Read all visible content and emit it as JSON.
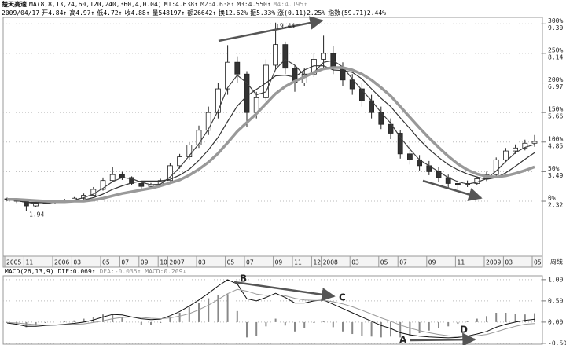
{
  "chart_data": [
    {
      "type": "candlestick",
      "title": "楚天高速",
      "indicator": "MA(8,8,13,24,60,120,240,360,4,0.04)",
      "info": [
        "2009/04/17",
        "开4.84↑",
        "高4.97↑",
        "低4.72↑",
        "收4.88↑",
        "量548197↑",
        "额26642↑",
        "换12.62%",
        "振5.33%",
        "涨(0.11)2.25%",
        "指数(59.71)2.44%"
      ],
      "period_label": "周线",
      "annotations": [
        "9.44",
        "1.94"
      ],
      "categories": [
        "2005",
        null,
        "11",
        null,
        null,
        "2006",
        null,
        "03",
        null,
        null,
        "05",
        null,
        "07",
        null,
        "09",
        null,
        "10",
        "2007",
        null,
        null,
        "03",
        null,
        null,
        "05",
        null,
        "07",
        null,
        null,
        "09",
        null,
        "11",
        null,
        "12",
        "2008",
        null,
        null,
        "03",
        null,
        null,
        "05",
        null,
        "07",
        null,
        null,
        "09",
        null,
        null,
        "11",
        null,
        null,
        "2009",
        null,
        "03",
        null,
        null,
        "05"
      ],
      "open": [
        4,
        2,
        0,
        -8,
        -3,
        -2,
        -1,
        2,
        5,
        10,
        20,
        35,
        45,
        40,
        30,
        25,
        28,
        35,
        60,
        75,
        95,
        120,
        150,
        190,
        235,
        215,
        150,
        175,
        230,
        265,
        225,
        200,
        215,
        240,
        250,
        225,
        205,
        190,
        170,
        150,
        130,
        115,
        80,
        70,
        60,
        50,
        40,
        30,
        28,
        30,
        38,
        45,
        70,
        85,
        90,
        98
      ],
      "high": [
        6,
        3,
        1,
        -1,
        0,
        1,
        4,
        7,
        13,
        24,
        40,
        58,
        50,
        42,
        32,
        31,
        38,
        64,
        80,
        100,
        128,
        160,
        200,
        264,
        245,
        220,
        185,
        240,
        302,
        270,
        230,
        225,
        250,
        280,
        262,
        235,
        215,
        200,
        180,
        160,
        140,
        120,
        95,
        78,
        68,
        58,
        45,
        36,
        35,
        42,
        50,
        74,
        90,
        96,
        104,
        112
      ],
      "low": [
        0,
        -3,
        -16,
        -10,
        -5,
        -4,
        -2,
        0,
        3,
        8,
        18,
        32,
        36,
        27,
        21,
        22,
        26,
        34,
        55,
        70,
        90,
        112,
        140,
        180,
        200,
        125,
        140,
        170,
        222,
        215,
        185,
        195,
        210,
        225,
        215,
        195,
        180,
        160,
        140,
        122,
        105,
        72,
        62,
        52,
        44,
        33,
        22,
        20,
        24,
        27,
        34,
        43,
        66,
        80,
        86,
        92
      ],
      "close": [
        2,
        0,
        -8,
        -3,
        -2,
        -1,
        2,
        5,
        10,
        20,
        35,
        45,
        40,
        30,
        25,
        28,
        35,
        60,
        75,
        95,
        120,
        150,
        190,
        235,
        215,
        150,
        175,
        230,
        265,
        225,
        200,
        215,
        240,
        250,
        225,
        205,
        190,
        170,
        150,
        130,
        115,
        80,
        70,
        60,
        50,
        40,
        30,
        28,
        30,
        38,
        45,
        70,
        85,
        90,
        98,
        101
      ],
      "up_color": "#ffffff",
      "down_color": "#333333",
      "candle_stroke": "#222222",
      "series": [
        {
          "name": "M1:4.638↑",
          "color": "#111111",
          "width": 1,
          "values": [
            2,
            1,
            -2,
            -4,
            -4,
            -2,
            0,
            2,
            6,
            12,
            22,
            33,
            40,
            38,
            32,
            28,
            29,
            41,
            57,
            77,
            97,
            122,
            153,
            192,
            213,
            200,
            180,
            185,
            223,
            240,
            230,
            213,
            218,
            235,
            238,
            227,
            207,
            188,
            170,
            150,
            132,
            108,
            88,
            70,
            60,
            50,
            40,
            33,
            29,
            32,
            38,
            51,
            67,
            82,
            91,
            96
          ]
        },
        {
          "name": "M2:4.638↑",
          "color": "#444444",
          "width": 1,
          "values": [
            2,
            1,
            -2,
            -4,
            -4,
            -2,
            0,
            2,
            6,
            12,
            22,
            33,
            40,
            38,
            32,
            28,
            29,
            41,
            57,
            77,
            97,
            122,
            153,
            192,
            213,
            200,
            180,
            185,
            223,
            240,
            230,
            213,
            218,
            235,
            238,
            227,
            207,
            188,
            170,
            150,
            132,
            108,
            88,
            70,
            60,
            50,
            40,
            33,
            29,
            32,
            38,
            51,
            67,
            82,
            91,
            96
          ]
        },
        {
          "name": "M3:4.550↑",
          "color": "#333333",
          "width": 1.2,
          "values": [
            2,
            1,
            -2,
            -2,
            -2,
            -2,
            -2,
            -1,
            2,
            6,
            12,
            20,
            26,
            31,
            34,
            34,
            34,
            37,
            44,
            54,
            69,
            87,
            108,
            135,
            161,
            178,
            189,
            200,
            212,
            213,
            210,
            222,
            229,
            229,
            222,
            221,
            218,
            207,
            190,
            174,
            160,
            141,
            123,
            104,
            88,
            74,
            62,
            53,
            46,
            41,
            37,
            40,
            48,
            59,
            71,
            82
          ]
        },
        {
          "name": "M4:4.195↑",
          "color": "#999999",
          "width": 3.5,
          "values": [
            3,
            3,
            2,
            1,
            0,
            -1,
            -1,
            0,
            0,
            2,
            5,
            9,
            13,
            16,
            19,
            22,
            26,
            31,
            36,
            44,
            54,
            66,
            81,
            99,
            118,
            133,
            148,
            165,
            182,
            194,
            203,
            210,
            218,
            224,
            226,
            226,
            222,
            215,
            205,
            192,
            178,
            160,
            142,
            124,
            107,
            91,
            76,
            63,
            53,
            46,
            42,
            41,
            43,
            47,
            52,
            58
          ]
        }
      ],
      "ylim": [
        -93,
        311
      ],
      "yticks": [
        {
          "value": 300,
          "label": "300%"
        },
        {
          "value": 250,
          "label": "250%"
        },
        {
          "value": 200,
          "label": "200%"
        },
        {
          "value": 150,
          "label": "150%"
        },
        {
          "value": 100,
          "label": "100%"
        },
        {
          "value": 50,
          "label": "50%"
        },
        {
          "value": 0,
          "label": "0%"
        }
      ],
      "price_labels": [
        "9.30",
        "8.14",
        "6.97",
        "5.66",
        "4.85",
        "3.49",
        "2.32"
      ],
      "grid": true
    },
    {
      "type": "line",
      "title": "MACD(26,13,9)",
      "annotations": [
        "B",
        "C",
        "A",
        "D"
      ],
      "series": [
        {
          "name": "DIF:0.069↑",
          "color": "#111111",
          "values": [
            -0.02,
            -0.05,
            -0.1,
            -0.1,
            -0.08,
            -0.07,
            -0.05,
            -0.03,
            0,
            0.05,
            0.12,
            0.18,
            0.17,
            0.12,
            0.08,
            0.06,
            0.07,
            0.15,
            0.25,
            0.38,
            0.52,
            0.68,
            0.85,
            1.0,
            0.9,
            0.55,
            0.5,
            0.58,
            0.68,
            0.58,
            0.45,
            0.45,
            0.5,
            0.52,
            0.42,
            0.32,
            0.22,
            0.12,
            0.02,
            -0.08,
            -0.15,
            -0.25,
            -0.3,
            -0.33,
            -0.35,
            -0.36,
            -0.37,
            -0.36,
            -0.33,
            -0.28,
            -0.22,
            -0.12,
            -0.05,
            0.0,
            0.04,
            0.069
          ]
        },
        {
          "name": "DEA:-0.035↑",
          "color": "#999999",
          "values": [
            -0.01,
            -0.02,
            -0.04,
            -0.06,
            -0.07,
            -0.07,
            -0.06,
            -0.05,
            -0.04,
            -0.01,
            0.03,
            0.08,
            0.11,
            0.12,
            0.11,
            0.09,
            0.08,
            0.1,
            0.14,
            0.2,
            0.29,
            0.4,
            0.53,
            0.67,
            0.77,
            0.73,
            0.66,
            0.63,
            0.64,
            0.62,
            0.56,
            0.52,
            0.51,
            0.51,
            0.48,
            0.43,
            0.36,
            0.28,
            0.19,
            0.1,
            0.02,
            -0.07,
            -0.14,
            -0.2,
            -0.25,
            -0.29,
            -0.32,
            -0.34,
            -0.34,
            -0.32,
            -0.29,
            -0.23,
            -0.16,
            -0.1,
            -0.05,
            -0.035
          ]
        },
        {
          "name": "MACD:0.209↓",
          "color": "#888888",
          "type": "bar",
          "values": [
            -0.02,
            -0.06,
            -0.12,
            -0.08,
            -0.02,
            0,
            0.02,
            0.04,
            0.08,
            0.12,
            0.18,
            0.2,
            0.12,
            0,
            -0.06,
            -0.06,
            -0.02,
            0.1,
            0.22,
            0.36,
            0.46,
            0.56,
            0.64,
            0.66,
            0.26,
            -0.36,
            -0.32,
            -0.1,
            0.08,
            -0.08,
            -0.22,
            -0.14,
            -0.02,
            0.02,
            -0.12,
            -0.22,
            -0.28,
            -0.32,
            -0.34,
            -0.36,
            -0.34,
            -0.36,
            -0.32,
            -0.26,
            -0.2,
            -0.14,
            -0.1,
            -0.04,
            0.02,
            0.08,
            0.14,
            0.22,
            0.22,
            0.2,
            0.18,
            0.209
          ]
        }
      ],
      "ylim": [
        -0.52,
        1.09
      ],
      "yticks": [
        {
          "value": 1,
          "label": "1.00"
        },
        {
          "value": 0.5,
          "label": "0.50"
        },
        {
          "value": 0,
          "label": "0.00"
        },
        {
          "value": -0.5,
          "label": "-0.50"
        }
      ],
      "grid": true
    }
  ]
}
